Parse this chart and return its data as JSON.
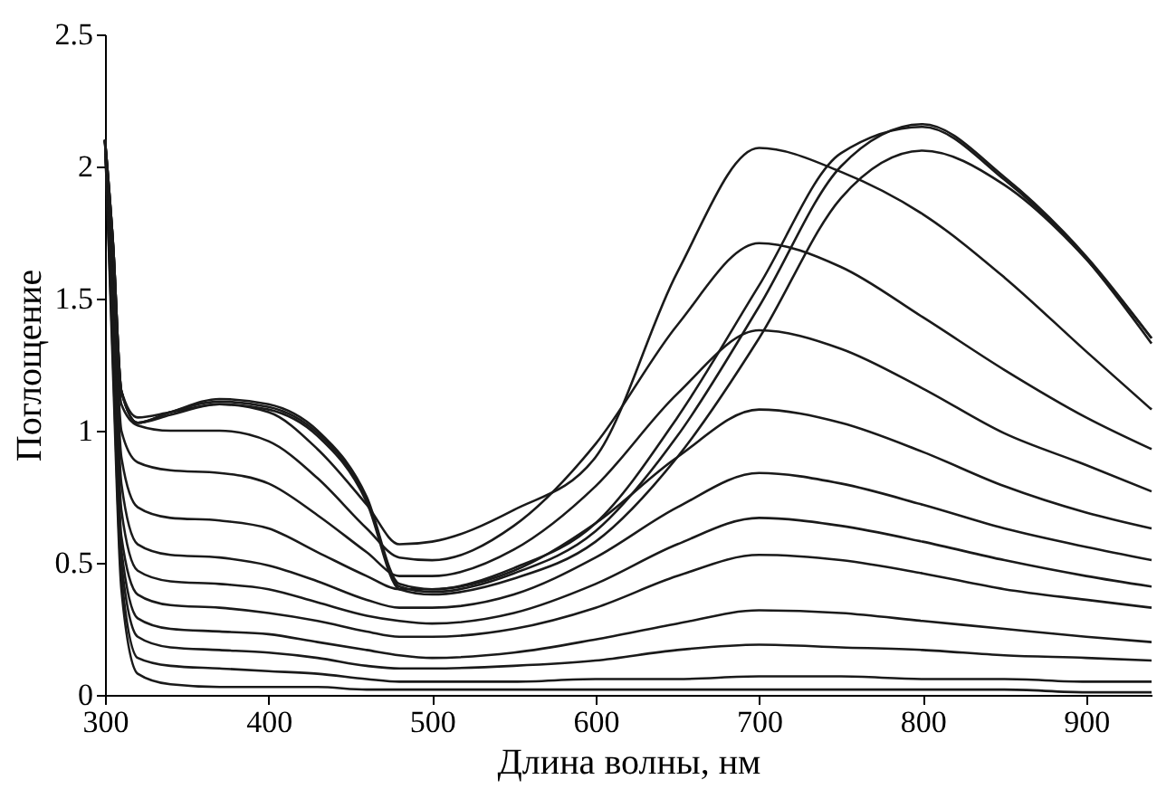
{
  "chart_data": {
    "type": "line",
    "xlabel": "Длина волны, нм",
    "ylabel": "Поглощение",
    "x": [
      300,
      305,
      310,
      320,
      340,
      370,
      400,
      430,
      460,
      480,
      500,
      550,
      600,
      650,
      700,
      750,
      800,
      850,
      900,
      940
    ],
    "xlim": [
      300,
      940
    ],
    "xticks": [
      300,
      400,
      500,
      600,
      700,
      800,
      900
    ],
    "ylim": [
      0,
      2.5
    ],
    "yticks": [
      0,
      0.5,
      1,
      1.5,
      2,
      2.5
    ],
    "grid": false,
    "legend": false,
    "marker": "none",
    "line_style": "solid",
    "series": [
      {
        "color": "#1a1a1a",
        "values": [
          2.1,
          1.2,
          0.4,
          0.08,
          0.04,
          0.03,
          0.03,
          0.03,
          0.02,
          0.02,
          0.02,
          0.02,
          0.02,
          0.02,
          0.02,
          0.02,
          0.02,
          0.02,
          0.01,
          0.01
        ]
      },
      {
        "color": "#1a1a1a",
        "values": [
          2.1,
          1.25,
          0.45,
          0.14,
          0.11,
          0.1,
          0.09,
          0.08,
          0.06,
          0.05,
          0.05,
          0.05,
          0.06,
          0.06,
          0.07,
          0.07,
          0.06,
          0.06,
          0.05,
          0.05
        ]
      },
      {
        "color": "#1a1a1a",
        "values": [
          2.1,
          1.3,
          0.5,
          0.22,
          0.18,
          0.17,
          0.16,
          0.14,
          0.11,
          0.1,
          0.1,
          0.11,
          0.13,
          0.17,
          0.19,
          0.18,
          0.17,
          0.15,
          0.14,
          0.13
        ]
      },
      {
        "color": "#1a1a1a",
        "values": [
          2.1,
          1.35,
          0.55,
          0.29,
          0.25,
          0.24,
          0.23,
          0.2,
          0.17,
          0.15,
          0.14,
          0.16,
          0.21,
          0.27,
          0.32,
          0.31,
          0.28,
          0.25,
          0.22,
          0.2
        ]
      },
      {
        "color": "#1a1a1a",
        "values": [
          2.1,
          1.4,
          0.6,
          0.38,
          0.34,
          0.33,
          0.31,
          0.28,
          0.24,
          0.22,
          0.22,
          0.25,
          0.33,
          0.45,
          0.53,
          0.51,
          0.46,
          0.4,
          0.36,
          0.33
        ]
      },
      {
        "color": "#1a1a1a",
        "values": [
          2.1,
          1.45,
          0.7,
          0.47,
          0.43,
          0.42,
          0.4,
          0.35,
          0.3,
          0.28,
          0.27,
          0.31,
          0.42,
          0.57,
          0.67,
          0.64,
          0.58,
          0.51,
          0.45,
          0.41
        ]
      },
      {
        "color": "#1a1a1a",
        "values": [
          2.1,
          1.5,
          0.8,
          0.57,
          0.53,
          0.52,
          0.49,
          0.43,
          0.36,
          0.33,
          0.33,
          0.38,
          0.52,
          0.71,
          0.84,
          0.8,
          0.72,
          0.63,
          0.56,
          0.51
        ]
      },
      {
        "color": "#1a1a1a",
        "values": [
          2.1,
          1.55,
          0.9,
          0.71,
          0.67,
          0.66,
          0.63,
          0.54,
          0.45,
          0.4,
          0.4,
          0.47,
          0.65,
          0.9,
          1.08,
          1.03,
          0.92,
          0.79,
          0.69,
          0.63
        ]
      },
      {
        "color": "#1a1a1a",
        "values": [
          2.1,
          1.6,
          1.0,
          0.88,
          0.85,
          0.84,
          0.8,
          0.68,
          0.54,
          0.45,
          0.45,
          0.55,
          0.79,
          1.14,
          1.38,
          1.31,
          1.16,
          0.99,
          0.87,
          0.77
        ]
      },
      {
        "color": "#1a1a1a",
        "values": [
          2.1,
          1.65,
          1.1,
          1.02,
          1.0,
          1.0,
          0.96,
          0.82,
          0.63,
          0.52,
          0.51,
          0.64,
          0.95,
          1.4,
          1.71,
          1.62,
          1.43,
          1.23,
          1.05,
          0.93
        ]
      },
      {
        "color": "#1a1a1a",
        "values": [
          2.1,
          1.7,
          1.15,
          1.05,
          1.07,
          1.1,
          1.07,
          0.93,
          0.72,
          0.57,
          0.58,
          0.7,
          0.9,
          1.6,
          2.07,
          1.98,
          1.82,
          1.58,
          1.3,
          1.08
        ]
      },
      {
        "color": "#1a1a1a",
        "values": [
          2.1,
          1.7,
          1.15,
          1.03,
          1.07,
          1.12,
          1.1,
          1.0,
          0.75,
          0.42,
          0.4,
          0.48,
          0.65,
          1.05,
          1.55,
          2.05,
          2.15,
          1.95,
          1.65,
          1.33
        ]
      },
      {
        "color": "#1a1a1a",
        "values": [
          2.1,
          1.7,
          1.15,
          1.03,
          1.07,
          1.11,
          1.09,
          0.99,
          0.74,
          0.41,
          0.39,
          0.46,
          0.62,
          0.98,
          1.47,
          2.0,
          2.16,
          1.96,
          1.66,
          1.35
        ]
      },
      {
        "color": "#1a1a1a",
        "values": [
          2.1,
          1.7,
          1.15,
          1.03,
          1.06,
          1.1,
          1.08,
          0.98,
          0.73,
          0.4,
          0.38,
          0.44,
          0.58,
          0.9,
          1.35,
          1.88,
          2.06,
          1.93,
          1.65,
          1.35
        ]
      }
    ]
  }
}
